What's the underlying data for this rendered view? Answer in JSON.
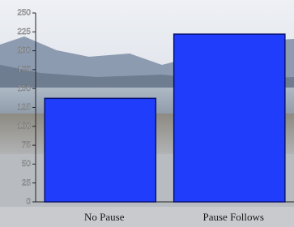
{
  "chart_data": {
    "type": "bar",
    "categories": [
      "No Pause",
      "Pause Follows"
    ],
    "values": [
      137,
      222
    ],
    "color": "#1f3dfb",
    "ylim": [
      0,
      250
    ],
    "yticks": [
      0,
      25,
      50,
      75,
      100,
      125,
      150,
      175,
      200,
      225,
      250
    ]
  }
}
